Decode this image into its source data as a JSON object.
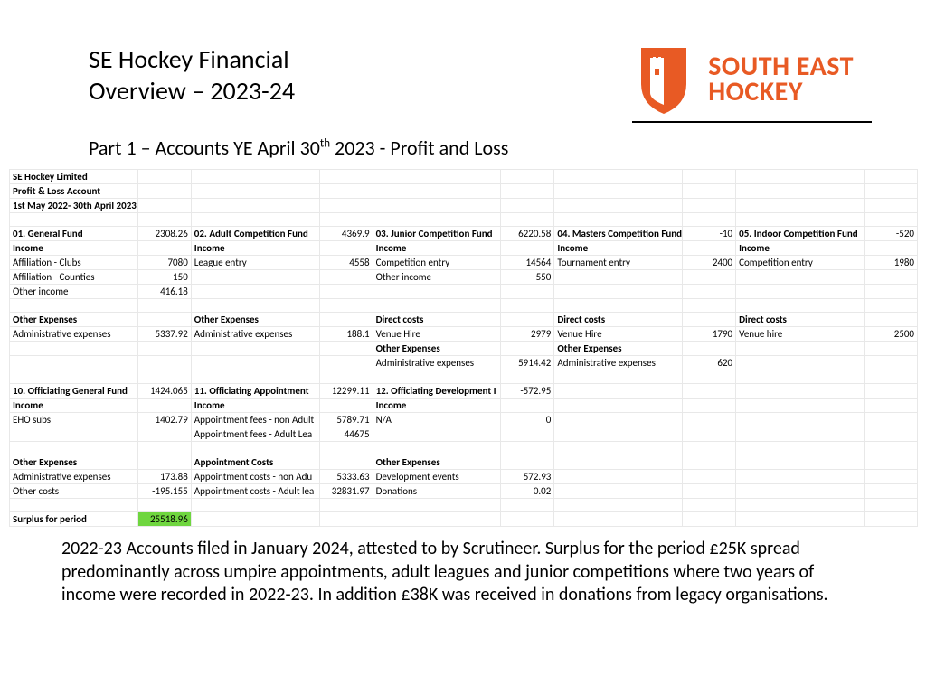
{
  "header": {
    "title_line1": "SE Hockey Financial",
    "title_line2": "Overview – 2023-24",
    "logo_text1": "SOUTH EAST",
    "logo_text2": "HOCKEY",
    "brand_color": "#e85a24"
  },
  "subtitle_pre": "Part 1 – Accounts YE April 30",
  "subtitle_sup": "th",
  "subtitle_post": " 2023 - Profit and Loss",
  "company": "SE Hockey Limited",
  "account_type": "Profit & Loss Account",
  "period": "1st May 2022- 30th April 2023",
  "colors": {
    "highlight": "#6fd63f",
    "grid": "#e8e8e8",
    "text": "#000000",
    "bg": "#ffffff"
  },
  "funds_row1": [
    {
      "title": "01. General Fund",
      "total": "2308.26",
      "rows": [
        [
          "Income",
          ""
        ],
        [
          "Affiliation - Clubs",
          "7080"
        ],
        [
          "Affiliation - Counties",
          "150"
        ],
        [
          "Other income",
          "416.18"
        ],
        [
          "",
          ""
        ],
        [
          "Other Expenses",
          ""
        ],
        [
          "Administrative expenses",
          "5337.92"
        ],
        [
          "",
          ""
        ],
        [
          "",
          ""
        ]
      ]
    },
    {
      "title": "02. Adult Competition Fund",
      "total": "4369.9",
      "rows": [
        [
          "Income",
          ""
        ],
        [
          "League entry",
          "4558"
        ],
        [
          "",
          ""
        ],
        [
          "",
          ""
        ],
        [
          "",
          ""
        ],
        [
          "Other Expenses",
          ""
        ],
        [
          "Administrative expenses",
          "188.1"
        ],
        [
          "",
          ""
        ],
        [
          "",
          ""
        ]
      ]
    },
    {
      "title": "03. Junior Competition Fund",
      "total": "6220.58",
      "rows": [
        [
          "Income",
          ""
        ],
        [
          "Competition entry",
          "14564"
        ],
        [
          "Other income",
          "550"
        ],
        [
          "",
          ""
        ],
        [
          "",
          ""
        ],
        [
          "Direct costs",
          ""
        ],
        [
          "Venue Hire",
          "2979"
        ],
        [
          "Other Expenses",
          ""
        ],
        [
          "Administrative expenses",
          "5914.42"
        ]
      ]
    },
    {
      "title": "04. Masters Competition Fund",
      "total": "-10",
      "rows": [
        [
          "Income",
          ""
        ],
        [
          "Tournament entry",
          "2400"
        ],
        [
          "",
          ""
        ],
        [
          "",
          ""
        ],
        [
          "",
          ""
        ],
        [
          "Direct costs",
          ""
        ],
        [
          "Venue Hire",
          "1790"
        ],
        [
          "Other Expenses",
          ""
        ],
        [
          "Administrative expenses",
          "620"
        ]
      ]
    },
    {
      "title": "05. Indoor Competition Fund",
      "total": "-520",
      "rows": [
        [
          "Income",
          ""
        ],
        [
          "Competition entry",
          "1980"
        ],
        [
          "",
          ""
        ],
        [
          "",
          ""
        ],
        [
          "",
          ""
        ],
        [
          "Direct costs",
          ""
        ],
        [
          "Venue hire",
          "2500"
        ],
        [
          "",
          ""
        ],
        [
          "",
          ""
        ]
      ]
    }
  ],
  "funds_row2": [
    {
      "title": "10. Officiating General Fund",
      "total": "1424.065",
      "rows": [
        [
          "Income",
          ""
        ],
        [
          "EHO subs",
          "1402.79"
        ],
        [
          "",
          ""
        ],
        [
          "",
          ""
        ],
        [
          "Other Expenses",
          ""
        ],
        [
          "Administrative expenses",
          "173.88"
        ],
        [
          "Other costs",
          "-195.155"
        ]
      ]
    },
    {
      "title": "11. Officiating Appointment",
      "total": "12299.11",
      "rows": [
        [
          "Income",
          ""
        ],
        [
          "Appointment fees - non Adult",
          "5789.71"
        ],
        [
          "Appointment fees - Adult Lea",
          "44675"
        ],
        [
          "",
          ""
        ],
        [
          "Appointment Costs",
          ""
        ],
        [
          "Appointment costs - non Adu",
          "5333.63"
        ],
        [
          "Appointment costs - Adult lea",
          "32831.97"
        ]
      ]
    },
    {
      "title": "12. Officiating Development I",
      "total": "-572.95",
      "rows": [
        [
          "Income",
          ""
        ],
        [
          "N/A",
          "0"
        ],
        [
          "",
          ""
        ],
        [
          "",
          ""
        ],
        [
          "Other Expenses",
          ""
        ],
        [
          "Development events",
          "572.93"
        ],
        [
          "Donations",
          "0.02"
        ]
      ]
    }
  ],
  "surplus_label": "Surplus for period",
  "surplus_value": "25518.96",
  "footer": "2022-23 Accounts filed in January 2024, attested to by Scrutineer.  Surplus for the period £25K spread predominantly across umpire appointments, adult leagues and junior competitions where two years of income were recorded in 2022-23. In addition £38K was received in donations from legacy organisations."
}
